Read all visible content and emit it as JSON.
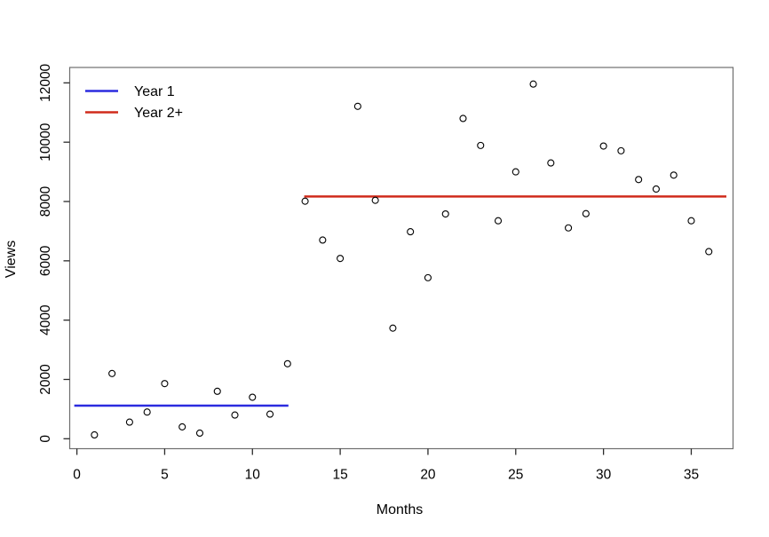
{
  "chart_data": {
    "type": "scatter",
    "title": "",
    "xlabel": "Months",
    "ylabel": "Views",
    "x": [
      1,
      2,
      3,
      4,
      5,
      6,
      7,
      8,
      9,
      10,
      11,
      12,
      13,
      14,
      15,
      16,
      17,
      18,
      19,
      20,
      21,
      22,
      23,
      24,
      25,
      26,
      27,
      28,
      29,
      30,
      31,
      32,
      33,
      34,
      35,
      36
    ],
    "y": [
      130,
      2200,
      560,
      900,
      1860,
      400,
      190,
      1600,
      800,
      1400,
      830,
      2530,
      8010,
      6700,
      6080,
      11210,
      8040,
      3730,
      6980,
      5430,
      7580,
      10800,
      9890,
      7350,
      9000,
      11960,
      9300,
      7110,
      7590,
      9870,
      9710,
      8740,
      8420,
      8890,
      7350,
      6310
    ],
    "point_style": {
      "shape": "open-circle",
      "color": "#000000",
      "radius": 3.5
    },
    "series": [
      {
        "name": "Year 1",
        "kind": "mean-line",
        "value": 1117,
        "x_start": -0.15,
        "x_end": 12.05,
        "color": "#2B2BDF"
      },
      {
        "name": "Year 2+",
        "kind": "mean-line",
        "value": 8170,
        "x_start": 12.95,
        "x_end": 37.0,
        "color": "#D02B1C"
      }
    ],
    "x_ticks": [
      0,
      5,
      10,
      15,
      20,
      25,
      30,
      35
    ],
    "y_ticks": [
      0,
      2000,
      4000,
      6000,
      8000,
      10000,
      12000
    ],
    "xlim": [
      -0.41,
      37.38
    ],
    "ylim": [
      -335,
      12520
    ],
    "grid": false,
    "legend": {
      "position": "top-left",
      "boxed": false,
      "entries": [
        {
          "label": "Year 1",
          "color": "#2B2BDF"
        },
        {
          "label": "Year 2+",
          "color": "#D02B1C"
        }
      ]
    },
    "frame_color": "#6e6e6e",
    "tick_color": "#2b2b2b"
  }
}
